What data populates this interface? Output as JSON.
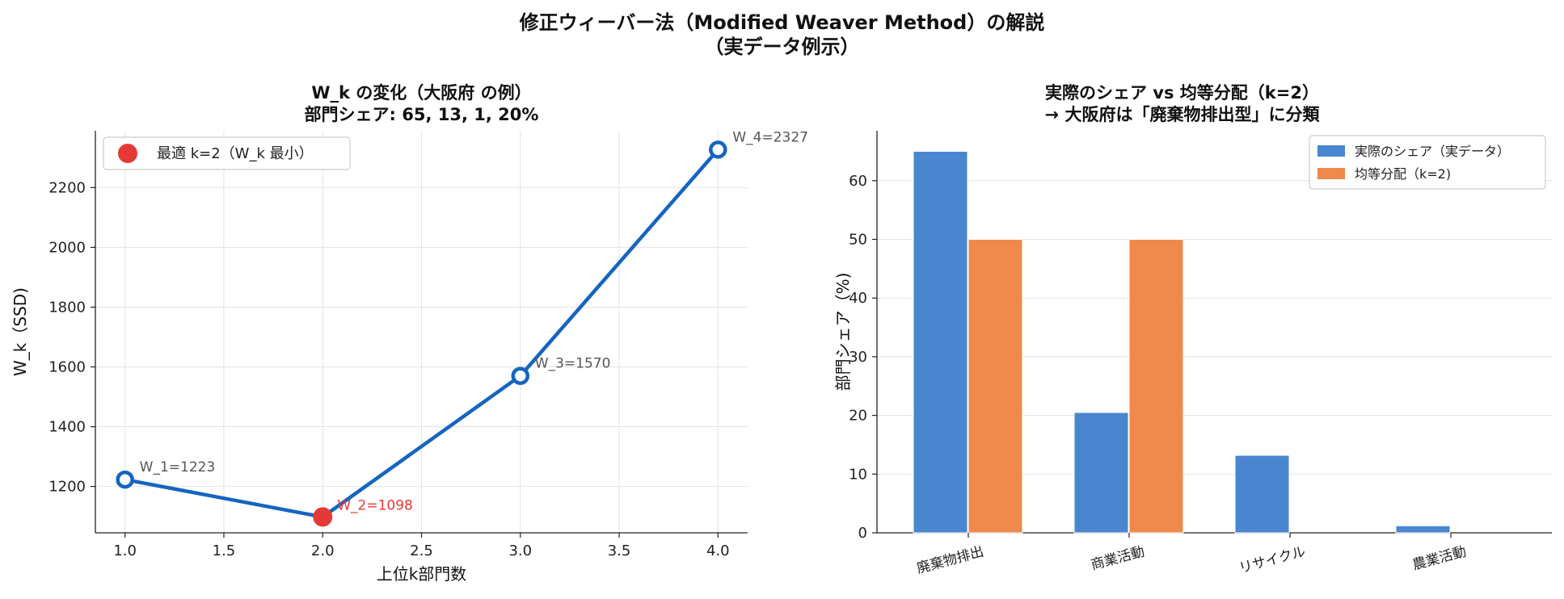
{
  "figure": {
    "title_line1": "修正ウィーバー法（Modified Weaver Method）の解説",
    "title_line2": "（実データ例示）"
  },
  "colors": {
    "line": "#1565c0",
    "highlight": "#e53935",
    "bar_actual": "#4a86cf",
    "bar_equal": "#f0894c",
    "grid": "#e3e3e3",
    "annotation": "#555555"
  },
  "chart_data": [
    {
      "type": "line",
      "title_line1": "W_k の変化（大阪府 の例）",
      "title_line2": "部門シェア: 65, 13, 1, 20%",
      "xlabel": "上位k部門数",
      "ylabel": "W_k（SSD)",
      "xlim": [
        0.85,
        4.15
      ],
      "ylim": [
        1045,
        2390
      ],
      "xticks": [
        1.0,
        1.5,
        2.0,
        2.5,
        3.0,
        3.5,
        4.0
      ],
      "xtick_labels": [
        "1.0",
        "1.5",
        "2.0",
        "2.5",
        "3.0",
        "3.5",
        "4.0"
      ],
      "yticks": [
        1200,
        1400,
        1600,
        1800,
        2000,
        2200
      ],
      "ytick_labels": [
        "1200",
        "1400",
        "1600",
        "1800",
        "2000",
        "2200"
      ],
      "grid": true,
      "x": [
        1,
        2,
        3,
        4
      ],
      "y": [
        1223,
        1098,
        1570,
        2327
      ],
      "point_labels": [
        "W_1=1223",
        "W_2=1098",
        "W_3=1570",
        "W_4=2327"
      ],
      "optimal_index": 1,
      "legend": {
        "label": "最適 k=2（W_k 最小）",
        "position": "top-left"
      }
    },
    {
      "type": "bar",
      "title_line1": "実際のシェア vs 均等分配（k=2）",
      "title_line2": "→ 大阪府は「廃棄物排出型」に分類",
      "ylabel": "部門シェア（%)",
      "categories": [
        "廃棄物排出",
        "商業活動",
        "リサイクル",
        "農業活動"
      ],
      "ylim": [
        0,
        68.5
      ],
      "yticks": [
        0,
        10,
        20,
        30,
        40,
        50,
        60
      ],
      "ytick_labels": [
        "0",
        "10",
        "20",
        "30",
        "40",
        "50",
        "60"
      ],
      "grid": true,
      "series": [
        {
          "name": "実際のシェア（実データ）",
          "values": [
            65,
            20.5,
            13.2,
            1.2
          ]
        },
        {
          "name": "均等分配（k=2)",
          "values": [
            50,
            50,
            0,
            0
          ]
        }
      ],
      "legend_position": "top-right"
    }
  ]
}
